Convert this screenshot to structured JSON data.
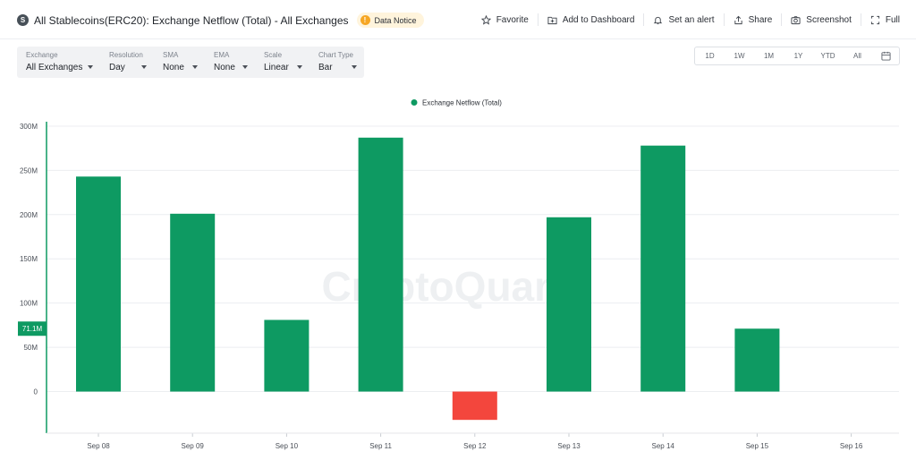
{
  "header": {
    "coin_icon_letter": "S",
    "title": "All Stablecoins(ERC20): Exchange Netflow (Total) - All Exchanges",
    "notice_icon": "!",
    "notice": "Data Notice",
    "actions": [
      {
        "label": "Favorite",
        "icon": "star-icon"
      },
      {
        "label": "Add to Dashboard",
        "icon": "dashboard-add-icon"
      },
      {
        "label": "Set an alert",
        "icon": "bell-icon"
      },
      {
        "label": "Share",
        "icon": "share-icon"
      },
      {
        "label": "Screenshot",
        "icon": "camera-icon"
      },
      {
        "label": "Full",
        "icon": "fullscreen-icon"
      }
    ]
  },
  "controls": [
    {
      "label": "Exchange",
      "value": "All Exchanges"
    },
    {
      "label": "Resolution",
      "value": "Day"
    },
    {
      "label": "SMA",
      "value": "None"
    },
    {
      "label": "EMA",
      "value": "None"
    },
    {
      "label": "Scale",
      "value": "Linear"
    },
    {
      "label": "Chart Type",
      "value": "Bar"
    }
  ],
  "ranges": [
    "1D",
    "1W",
    "1M",
    "1Y",
    "YTD",
    "All"
  ],
  "chart_data": {
    "type": "bar",
    "legend": "Exchange Netflow (Total)",
    "watermark": "CryptoQuant",
    "categories": [
      "Sep 08",
      "Sep 09",
      "Sep 10",
      "Sep 11",
      "Sep 12",
      "Sep 13",
      "Sep 14",
      "Sep 15",
      "Sep 16"
    ],
    "values": [
      243,
      201,
      81,
      287,
      -32,
      197,
      278,
      71.1,
      null
    ],
    "value_unit": "M",
    "yticks": [
      0,
      50,
      100,
      150,
      200,
      250,
      300
    ],
    "ytick_labels": [
      "0",
      "50M",
      "100M",
      "150M",
      "200M",
      "250M",
      "300M"
    ],
    "ylim": [
      -47,
      305
    ],
    "current_value_label": "71.1M",
    "current_value": 71.1,
    "colors": {
      "positive": "#0e9a62",
      "negative": "#f3463d",
      "axis": "#0e9a62"
    },
    "grid": true
  }
}
